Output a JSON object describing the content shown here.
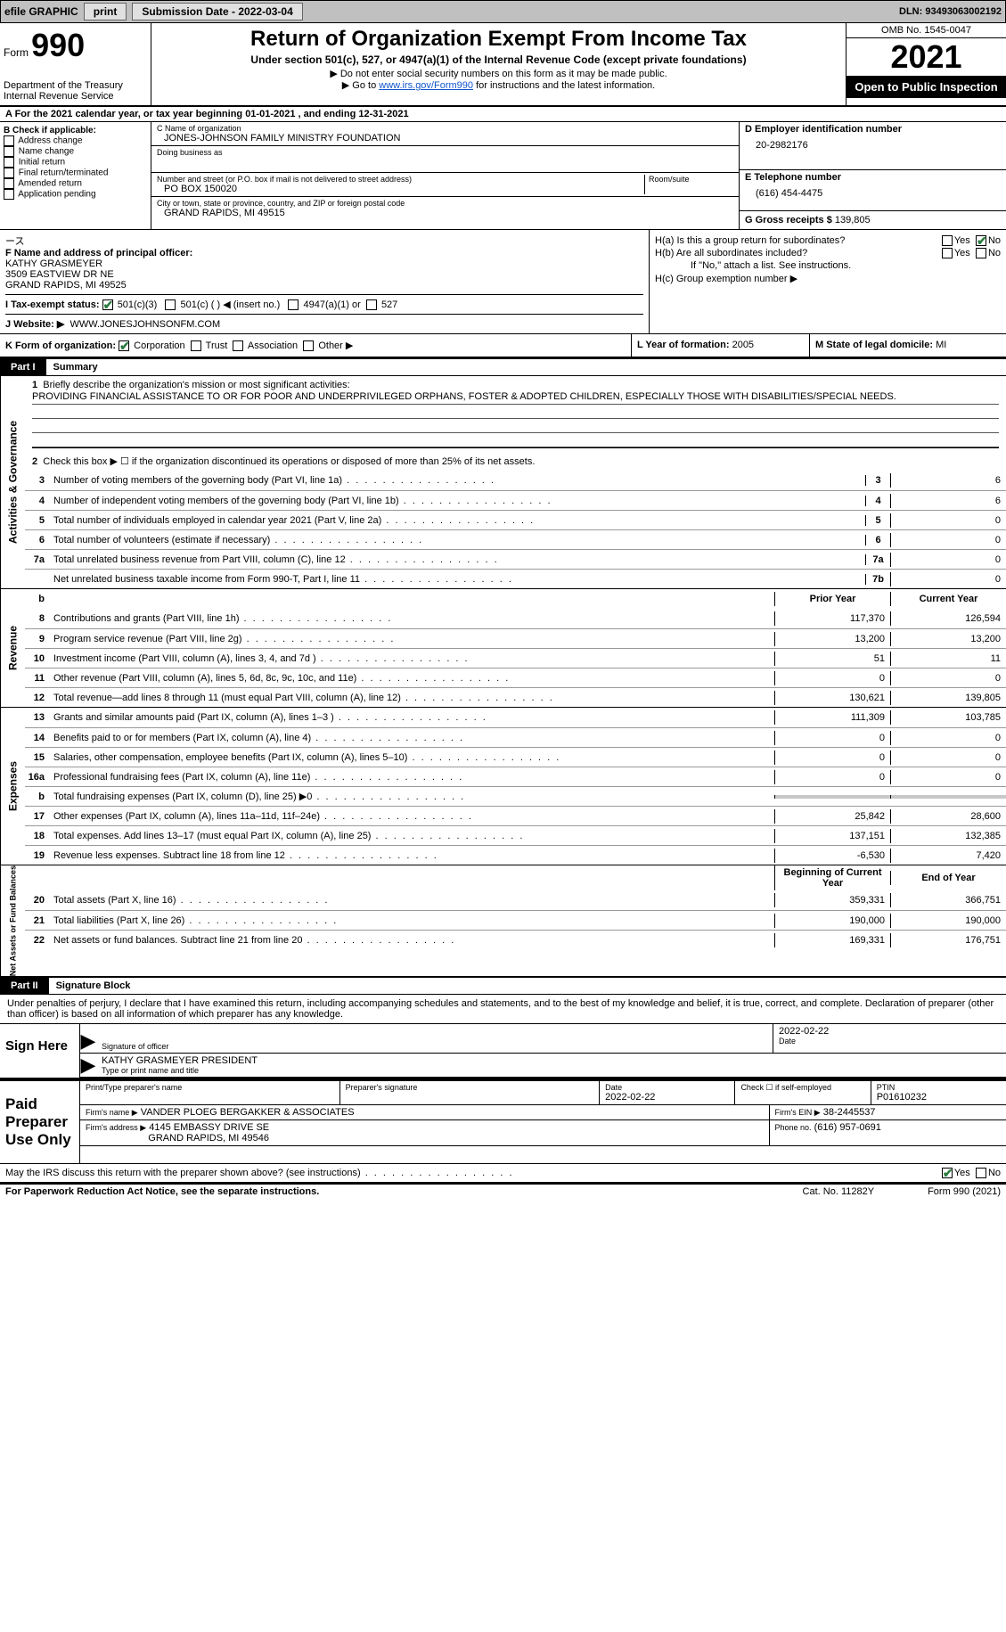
{
  "topbar": {
    "efile": "efile GRAPHIC",
    "print": "print",
    "sub_label": "Submission Date - 2022-03-04",
    "dln": "DLN: 93493063002192"
  },
  "header": {
    "form_word": "Form",
    "form_num": "990",
    "dept": "Department of the Treasury",
    "irs": "Internal Revenue Service",
    "title": "Return of Organization Exempt From Income Tax",
    "subtitle": "Under section 501(c), 527, or 4947(a)(1) of the Internal Revenue Code (except private foundations)",
    "note1": "▶ Do not enter social security numbers on this form as it may be made public.",
    "note2_pre": "▶ Go to ",
    "note2_link": "www.irs.gov/Form990",
    "note2_post": " for instructions and the latest information.",
    "omb": "OMB No. 1545-0047",
    "year": "2021",
    "otp": "Open to Public Inspection"
  },
  "lineA": "A For the 2021 calendar year, or tax year beginning 01-01-2021    , and ending 12-31-2021",
  "B": {
    "title": "B Check if applicable:",
    "opts": [
      "Address change",
      "Name change",
      "Initial return",
      "Final return/terminated",
      "Amended return",
      "Application pending"
    ]
  },
  "C": {
    "name_lbl": "C Name of organization",
    "name": "JONES-JOHNSON FAMILY MINISTRY FOUNDATION",
    "dba_lbl": "Doing business as",
    "dba": "",
    "street_lbl": "Number and street (or P.O. box if mail is not delivered to street address)",
    "room_lbl": "Room/suite",
    "street": "PO BOX 150020",
    "city_lbl": "City or town, state or province, country, and ZIP or foreign postal code",
    "city": "GRAND RAPIDS, MI  49515"
  },
  "D": {
    "lbl": "D Employer identification number",
    "val": "20-2982176"
  },
  "E": {
    "lbl": "E Telephone number",
    "val": "(616) 454-4475"
  },
  "G": {
    "lbl": "G Gross receipts $",
    "val": "139,805"
  },
  "F": {
    "lbl": "F Name and address of principal officer:",
    "l1": "KATHY GRASMEYER",
    "l2": "3509 EASTVIEW DR NE",
    "l3": "GRAND RAPIDS, MI  49525"
  },
  "H": {
    "a": "H(a)  Is this a group return for subordinates?",
    "b": "H(b)  Are all subordinates included?",
    "bnote": "If \"No,\" attach a list. See instructions.",
    "c": "H(c)  Group exemption number ▶"
  },
  "I": {
    "lbl": "I    Tax-exempt status:",
    "o1": "501(c)(3)",
    "o2": "501(c) (  ) ◀ (insert no.)",
    "o3": "4947(a)(1) or",
    "o4": "527"
  },
  "J": {
    "lbl": "J   Website: ▶",
    "val": "WWW.JONESJOHNSONFM.COM"
  },
  "K": {
    "lbl": "K Form of organization:",
    "o1": "Corporation",
    "o2": "Trust",
    "o3": "Association",
    "o4": "Other ▶"
  },
  "L": {
    "lbl": "L Year of formation:",
    "val": "2005"
  },
  "M": {
    "lbl": "M State of legal domicile:",
    "val": "MI"
  },
  "part1": {
    "lbl": "Part I",
    "title": "Summary"
  },
  "summary": {
    "q1": "Briefly describe the organization's mission or most significant activities:",
    "mission": "PROVIDING FINANCIAL ASSISTANCE TO OR FOR POOR AND UNDERPRIVILEGED ORPHANS, FOSTER & ADOPTED CHILDREN, ESPECIALLY THOSE WITH DISABILITIES/SPECIAL NEEDS.",
    "q2": "Check this box ▶ ☐ if the organization discontinued its operations or disposed of more than 25% of its net assets.",
    "rows_gov": [
      {
        "n": "3",
        "d": "Number of voting members of the governing body (Part VI, line 1a)",
        "box": "3",
        "v": "6"
      },
      {
        "n": "4",
        "d": "Number of independent voting members of the governing body (Part VI, line 1b)",
        "box": "4",
        "v": "6"
      },
      {
        "n": "5",
        "d": "Total number of individuals employed in calendar year 2021 (Part V, line 2a)",
        "box": "5",
        "v": "0"
      },
      {
        "n": "6",
        "d": "Total number of volunteers (estimate if necessary)",
        "box": "6",
        "v": "0"
      },
      {
        "n": "7a",
        "d": "Total unrelated business revenue from Part VIII, column (C), line 12",
        "box": "7a",
        "v": "0"
      },
      {
        "n": "",
        "d": "Net unrelated business taxable income from Form 990-T, Part I, line 11",
        "box": "7b",
        "v": "0"
      }
    ],
    "col_py": "Prior Year",
    "col_cy": "Current Year",
    "rows_rev": [
      {
        "n": "8",
        "d": "Contributions and grants (Part VIII, line 1h)",
        "py": "117,370",
        "cy": "126,594"
      },
      {
        "n": "9",
        "d": "Program service revenue (Part VIII, line 2g)",
        "py": "13,200",
        "cy": "13,200"
      },
      {
        "n": "10",
        "d": "Investment income (Part VIII, column (A), lines 3, 4, and 7d )",
        "py": "51",
        "cy": "11"
      },
      {
        "n": "11",
        "d": "Other revenue (Part VIII, column (A), lines 5, 6d, 8c, 9c, 10c, and 11e)",
        "py": "0",
        "cy": "0"
      },
      {
        "n": "12",
        "d": "Total revenue—add lines 8 through 11 (must equal Part VIII, column (A), line 12)",
        "py": "130,621",
        "cy": "139,805"
      }
    ],
    "rows_exp": [
      {
        "n": "13",
        "d": "Grants and similar amounts paid (Part IX, column (A), lines 1–3 )",
        "py": "111,309",
        "cy": "103,785"
      },
      {
        "n": "14",
        "d": "Benefits paid to or for members (Part IX, column (A), line 4)",
        "py": "0",
        "cy": "0"
      },
      {
        "n": "15",
        "d": "Salaries, other compensation, employee benefits (Part IX, column (A), lines 5–10)",
        "py": "0",
        "cy": "0"
      },
      {
        "n": "16a",
        "d": "Professional fundraising fees (Part IX, column (A), line 11e)",
        "py": "0",
        "cy": "0"
      },
      {
        "n": "b",
        "d": "Total fundraising expenses (Part IX, column (D), line 25) ▶0",
        "py": "",
        "cy": ""
      },
      {
        "n": "17",
        "d": "Other expenses (Part IX, column (A), lines 11a–11d, 11f–24e)",
        "py": "25,842",
        "cy": "28,600"
      },
      {
        "n": "18",
        "d": "Total expenses. Add lines 13–17 (must equal Part IX, column (A), line 25)",
        "py": "137,151",
        "cy": "132,385"
      },
      {
        "n": "19",
        "d": "Revenue less expenses. Subtract line 18 from line 12",
        "py": "-6,530",
        "cy": "7,420"
      }
    ],
    "col_boy": "Beginning of Current Year",
    "col_eoy": "End of Year",
    "rows_net": [
      {
        "n": "20",
        "d": "Total assets (Part X, line 16)",
        "py": "359,331",
        "cy": "366,751"
      },
      {
        "n": "21",
        "d": "Total liabilities (Part X, line 26)",
        "py": "190,000",
        "cy": "190,000"
      },
      {
        "n": "22",
        "d": "Net assets or fund balances. Subtract line 21 from line 20",
        "py": "169,331",
        "cy": "176,751"
      }
    ]
  },
  "vtabs": {
    "gov": "Activities & Governance",
    "rev": "Revenue",
    "exp": "Expenses",
    "net": "Net Assets or Fund Balances"
  },
  "part2": {
    "lbl": "Part II",
    "title": "Signature Block"
  },
  "sig": {
    "decl": "Under penalties of perjury, I declare that I have examined this return, including accompanying schedules and statements, and to the best of my knowledge and belief, it is true, correct, and complete. Declaration of preparer (other than officer) is based on all information of which preparer has any knowledge.",
    "here": "Sign Here",
    "sig_of_officer": "Signature of officer",
    "date": "2022-02-22",
    "date_lbl": "Date",
    "name": "KATHY GRASMEYER  PRESIDENT",
    "name_lbl": "Type or print name and title"
  },
  "paid": {
    "lbl": "Paid Preparer Use Only",
    "h1": "Print/Type preparer's name",
    "h2": "Preparer's signature",
    "h3": "Date",
    "h3v": "2022-02-22",
    "h4": "Check ☐ if self-employed",
    "h5": "PTIN",
    "h5v": "P01610232",
    "firm_lbl": "Firm's name    ▶",
    "firm": "VANDER PLOEG BERGAKKER & ASSOCIATES",
    "ein_lbl": "Firm's EIN ▶",
    "ein": "38-2445537",
    "addr_lbl": "Firm's address ▶",
    "addr1": "4145 EMBASSY DRIVE SE",
    "addr2": "GRAND RAPIDS, MI  49546",
    "phone_lbl": "Phone no.",
    "phone": "(616) 957-0691"
  },
  "discuss": "May the IRS discuss this return with the preparer shown above? (see instructions)",
  "yes": "Yes",
  "no": "No",
  "footer": {
    "l": "For Paperwork Reduction Act Notice, see the separate instructions.",
    "m": "Cat. No. 11282Y",
    "r": "Form 990 (2021)"
  }
}
